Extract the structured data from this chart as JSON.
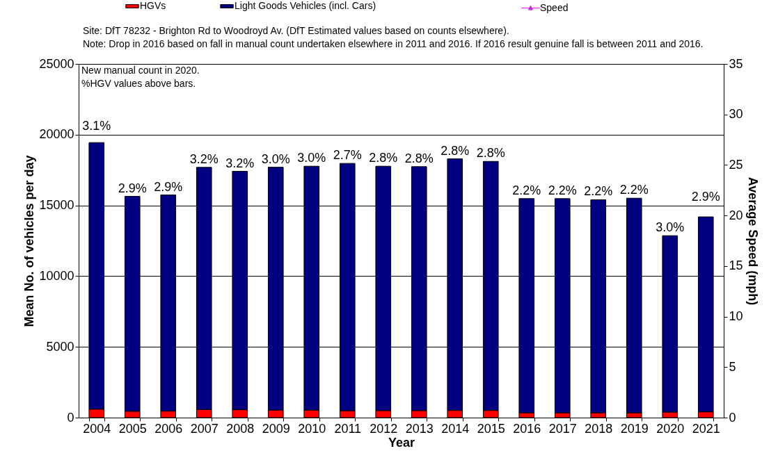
{
  "chart_data": {
    "type": "bar",
    "stacked": true,
    "xlabel": "Year",
    "ylabel": "Mean No. of vehicles per day",
    "y2label": "Average Speed (mph)",
    "categories": [
      "2004",
      "2005",
      "2006",
      "2007",
      "2008",
      "2009",
      "2010",
      "2011",
      "2012",
      "2013",
      "2014",
      "2015",
      "2016",
      "2017",
      "2018",
      "2019",
      "2020",
      "2021"
    ],
    "series": [
      {
        "name": "HGVs",
        "color": "#ff0000",
        "values": [
          600,
          450,
          460,
          570,
          560,
          530,
          530,
          490,
          500,
          500,
          510,
          510,
          340,
          340,
          340,
          340,
          390,
          410
        ]
      },
      {
        "name": "Light Goods Vehicles (incl. Cars)",
        "color": "#000080",
        "values": [
          18840,
          15190,
          15280,
          17120,
          16850,
          17170,
          17240,
          17480,
          17270,
          17240,
          17780,
          17600,
          15140,
          15140,
          15060,
          15170,
          12470,
          13780
        ]
      },
      {
        "name": "Speed",
        "type": "line",
        "axis": "y2",
        "color": "#ff00ff",
        "marker": "triangle",
        "values": [
          null,
          null,
          null,
          null,
          null,
          null,
          null,
          null,
          null,
          null,
          null,
          null,
          null,
          null,
          null,
          null,
          null,
          null
        ]
      }
    ],
    "ylim": [
      0,
      25000
    ],
    "yticks": [
      0,
      5000,
      10000,
      15000,
      20000,
      25000
    ],
    "y2lim": [
      0,
      35
    ],
    "y2ticks": [
      0,
      5,
      10,
      15,
      20,
      25,
      30,
      35
    ],
    "grid": "y",
    "legend": "top",
    "annotations": [
      "Site: DfT 78232 - Brighton Rd to Woodroyd Av. (DfT Estimated values based on counts elsewhere).",
      "Note: Drop in 2016 based on fall in manual count undertaken elsewhere in 2011 and 2016. If 2016 result genuine fall is between 2011 and 2016.",
      "New manual count in 2020.",
      "%HGV values above bars.",
      {
        "text": "3.1%",
        "x": "2004",
        "y": 19440
      },
      {
        "text": "2.9%",
        "x": "2005",
        "y": 15640
      },
      {
        "text": "2.9%",
        "x": "2006",
        "y": 15740
      },
      {
        "text": "3.2%",
        "x": "2007",
        "y": 17690
      },
      {
        "text": "3.2%",
        "x": "2008",
        "y": 17410
      },
      {
        "text": "3.0%",
        "x": "2009",
        "y": 17700
      },
      {
        "text": "3.0%",
        "x": "2010",
        "y": 17770
      },
      {
        "text": "2.7%",
        "x": "2011",
        "y": 17970
      },
      {
        "text": "2.8%",
        "x": "2012",
        "y": 17770
      },
      {
        "text": "2.8%",
        "x": "2013",
        "y": 17740
      },
      {
        "text": "2.8%",
        "x": "2014",
        "y": 18290
      },
      {
        "text": "2.8%",
        "x": "2015",
        "y": 18110
      },
      {
        "text": "2.2%",
        "x": "2016",
        "y": 15480
      },
      {
        "text": "2.2%",
        "x": "2017",
        "y": 15480
      },
      {
        "text": "2.2%",
        "x": "2018",
        "y": 15400
      },
      {
        "text": "2.2%",
        "x": "2019",
        "y": 15510
      },
      {
        "text": "3.0%",
        "x": "2020",
        "y": 12860
      },
      {
        "text": "2.9%",
        "x": "2021",
        "y": 14190
      }
    ]
  }
}
